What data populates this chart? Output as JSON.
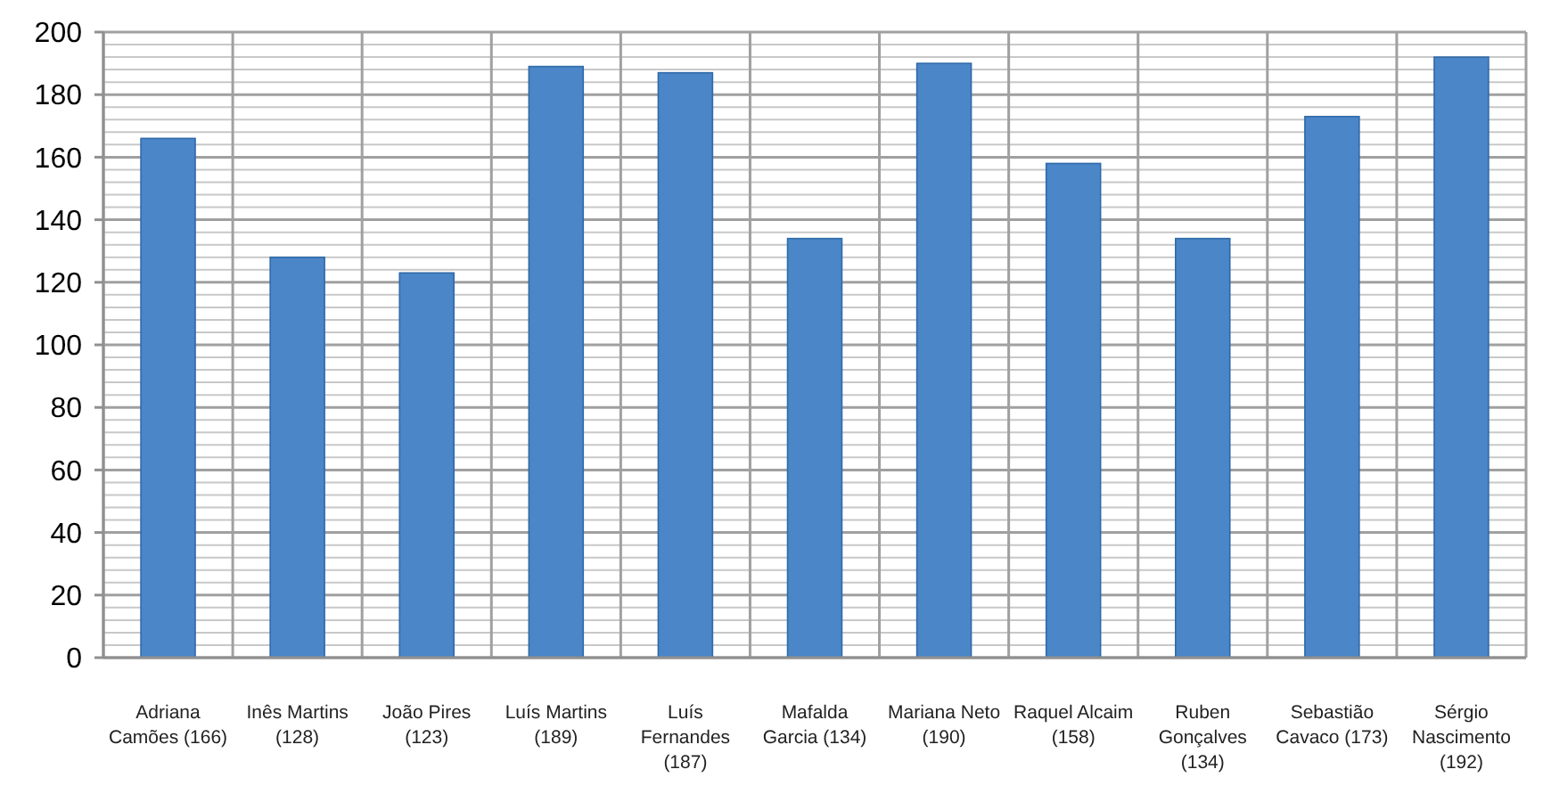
{
  "chart_data": {
    "type": "bar",
    "categories": [
      "Adriana Camões (166)",
      "Inês Martins (128)",
      "João Pires (123)",
      "Luís Martins (189)",
      "Luís Fernandes (187)",
      "Mafalda Garcia (134)",
      "Mariana Neto (190)",
      "Raquel Alcaim (158)",
      "Ruben Gonçalves (134)",
      "Sebastião Cavaco (173)",
      "Sérgio Nascimento (192)"
    ],
    "values": [
      166,
      128,
      123,
      189,
      187,
      134,
      190,
      158,
      134,
      173,
      192
    ],
    "color": "#4a86c8",
    "ylim": [
      0,
      200
    ],
    "yticks": [
      0,
      20,
      40,
      60,
      80,
      100,
      120,
      140,
      160,
      180,
      200
    ],
    "grid": true
  }
}
